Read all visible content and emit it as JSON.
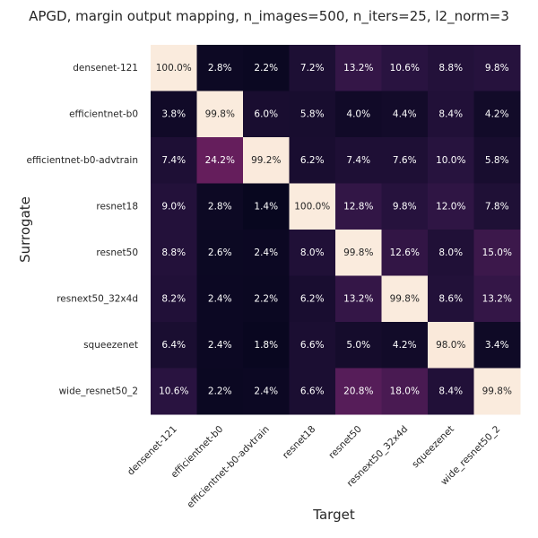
{
  "chart_data": {
    "type": "heatmap",
    "title": "APGD, margin output mapping, n_images=500, n_iters=25, l2_norm=3",
    "xlabel": "Target",
    "ylabel": "Surrogate",
    "x_categories": [
      "densenet-121",
      "efficientnet-b0",
      "efficientnet-b0-advtrain",
      "resnet18",
      "resnet50",
      "resnext50_32x4d",
      "squeezenet",
      "wide_resnet50_2"
    ],
    "y_categories": [
      "densenet-121",
      "efficientnet-b0",
      "efficientnet-b0-advtrain",
      "resnet18",
      "resnet50",
      "resnext50_32x4d",
      "squeezenet",
      "wide_resnet50_2"
    ],
    "values": [
      [
        100.0,
        2.8,
        2.2,
        7.2,
        13.2,
        10.6,
        8.8,
        9.8
      ],
      [
        3.8,
        99.8,
        6.0,
        5.8,
        4.0,
        4.4,
        8.4,
        4.2
      ],
      [
        7.4,
        24.2,
        99.2,
        6.2,
        7.4,
        7.6,
        10.0,
        5.8
      ],
      [
        9.0,
        2.8,
        1.4,
        100.0,
        12.8,
        9.8,
        12.0,
        7.8
      ],
      [
        8.8,
        2.6,
        2.4,
        8.0,
        99.8,
        12.6,
        8.0,
        15.0
      ],
      [
        8.2,
        2.4,
        2.2,
        6.2,
        13.2,
        99.8,
        8.6,
        13.2
      ],
      [
        6.4,
        2.4,
        1.8,
        6.6,
        5.0,
        4.2,
        98.0,
        3.4
      ],
      [
        10.6,
        2.2,
        2.4,
        6.6,
        20.8,
        18.0,
        8.4,
        99.8
      ]
    ],
    "value_format": "percent_1dp",
    "range": [
      0,
      100
    ],
    "colormap": "rocket",
    "colormap_stops": [
      "#03051a",
      "#2b1442",
      "#5c1e5c",
      "#8f1d5c",
      "#c4244b",
      "#e6533f",
      "#f2865c",
      "#f6b48e",
      "#fae0cd",
      "#faebdd"
    ],
    "text_color_dark": "#ffffff",
    "text_color_light": "#262626",
    "grid": false,
    "legend": "none"
  }
}
